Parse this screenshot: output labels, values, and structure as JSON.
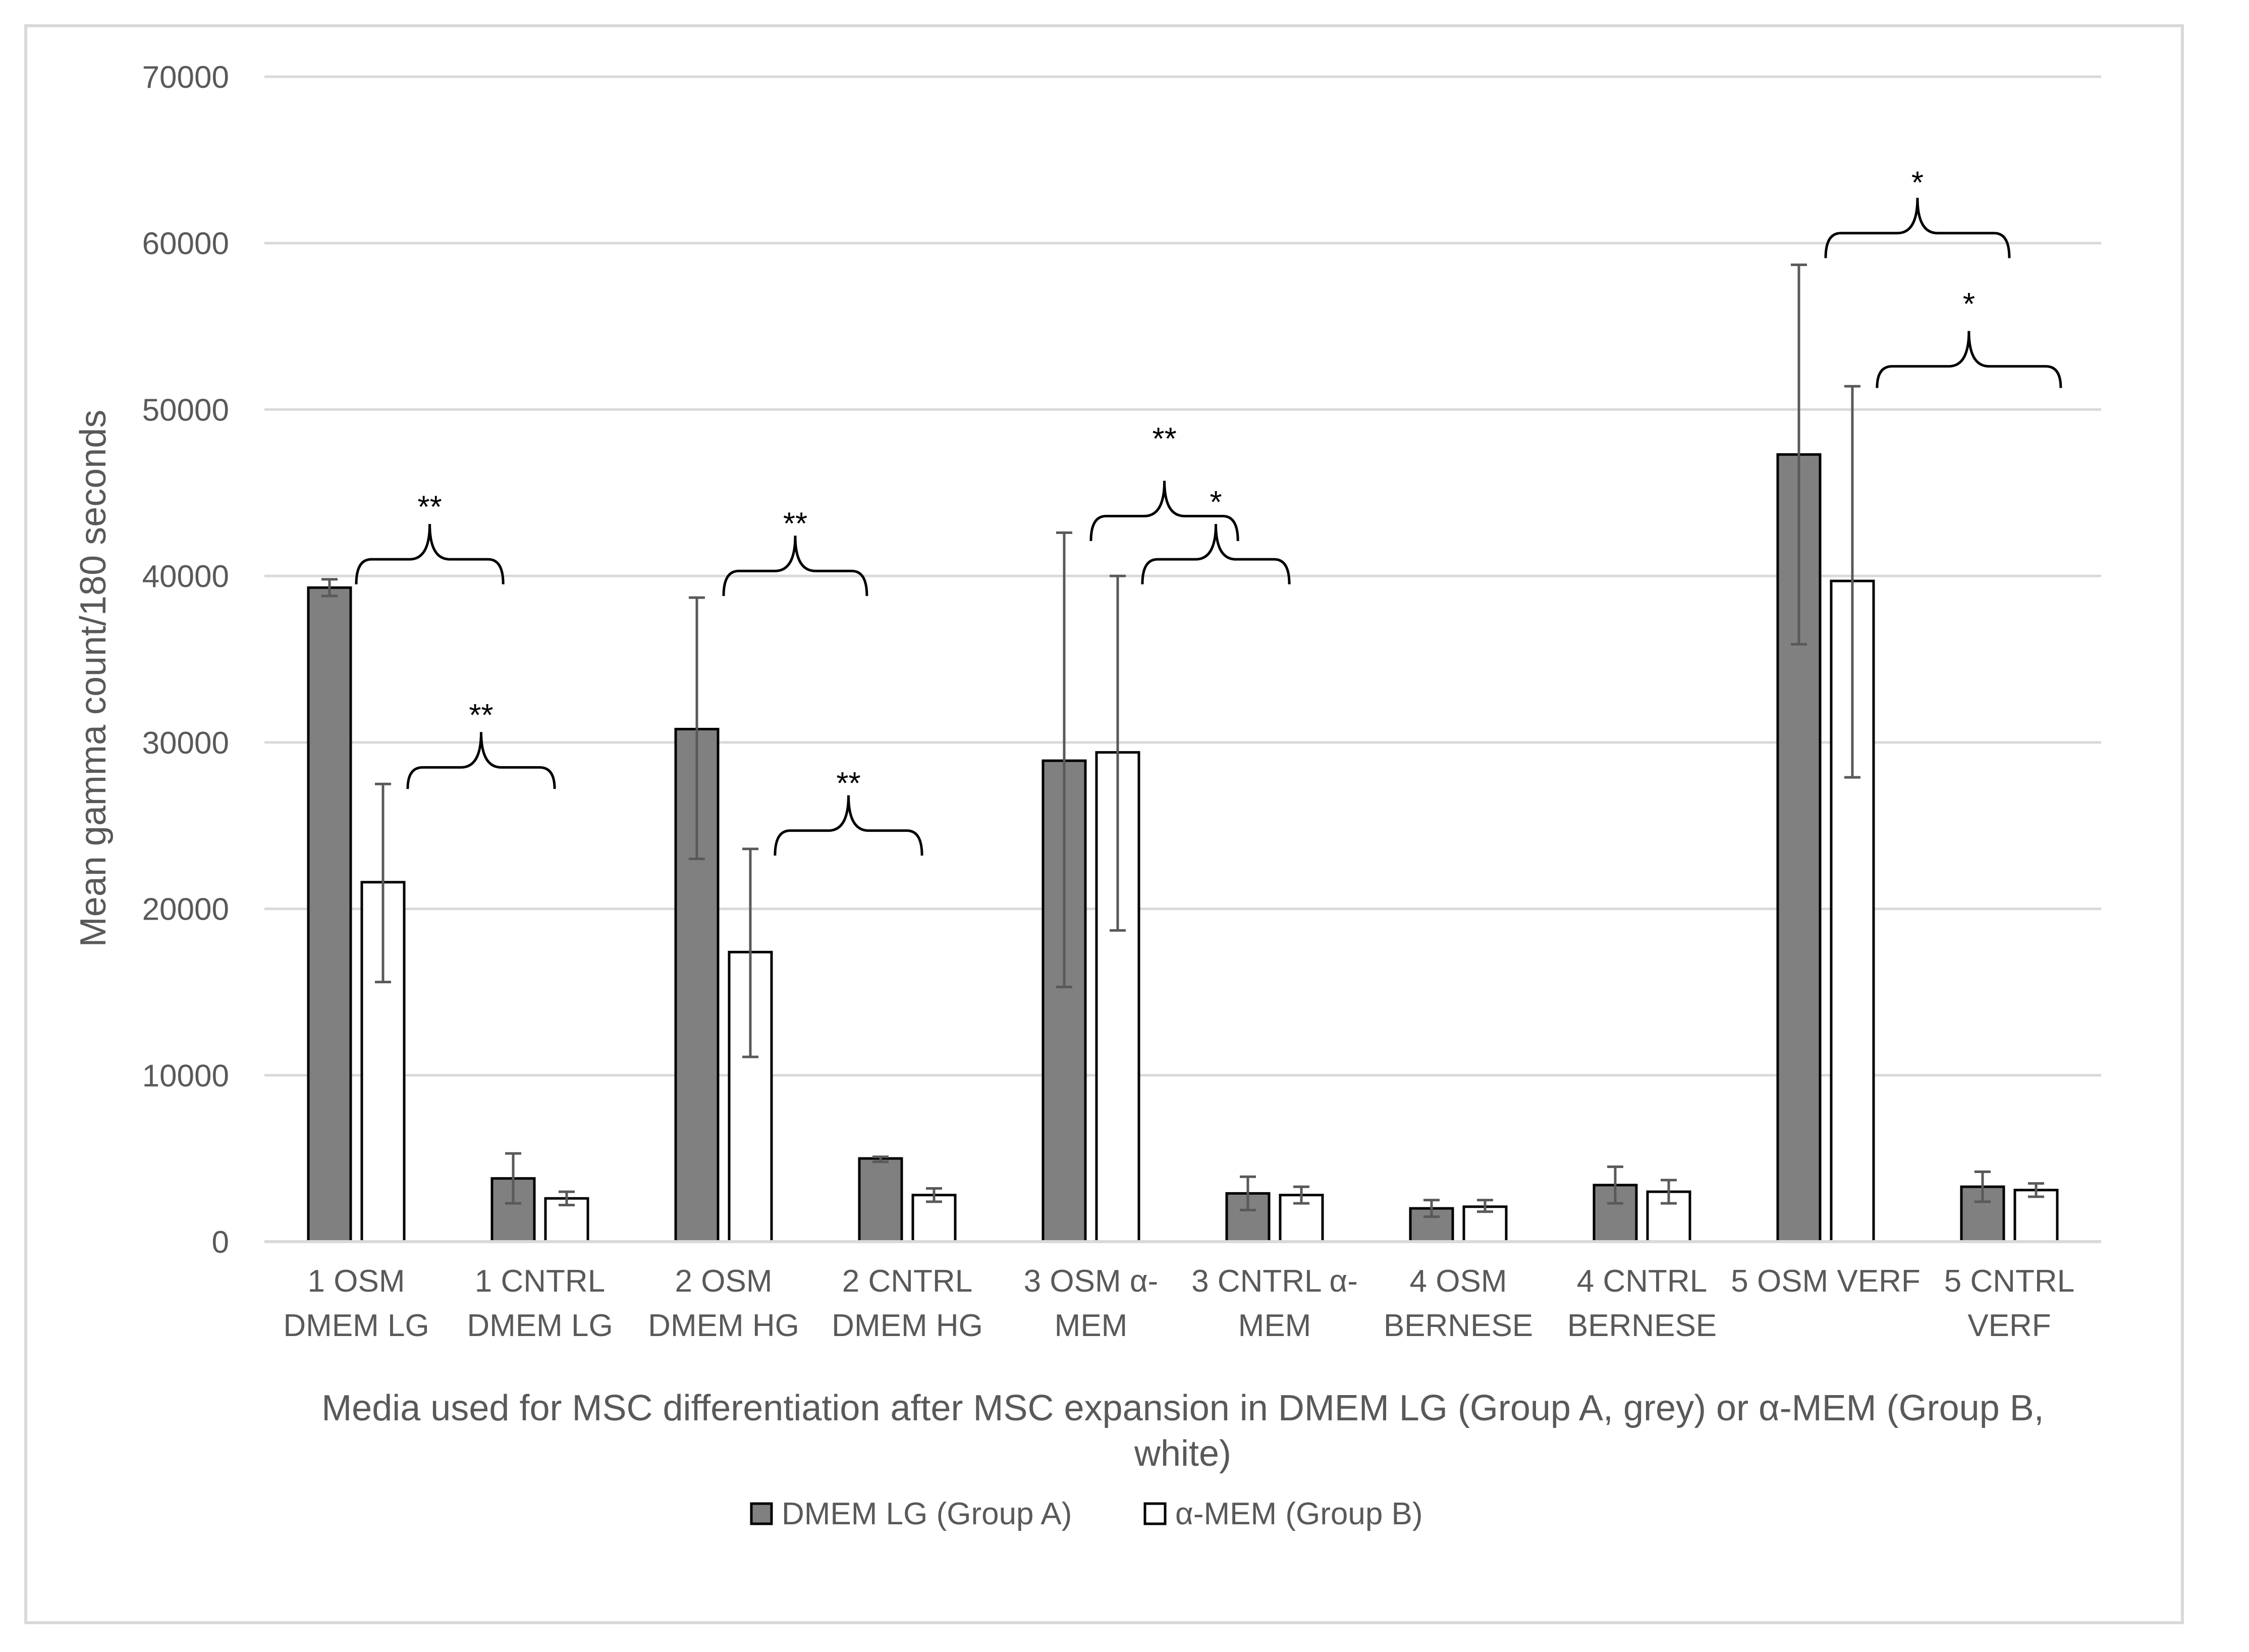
{
  "chart_data": {
    "type": "bar",
    "title": "",
    "ylabel": "Mean gamma count/180 seconds",
    "xlabel_lines": [
      "Media used for MSC differentiation after MSC expansion in DMEM LG (Group A, grey) or α-MEM (Group B,",
      "white)"
    ],
    "ylim": [
      0,
      70000
    ],
    "yticks": [
      0,
      10000,
      20000,
      30000,
      40000,
      50000,
      60000,
      70000
    ],
    "grid": true,
    "categories": [
      [
        "1 OSM",
        "DMEM LG"
      ],
      [
        "1 CNTRL",
        "DMEM LG"
      ],
      [
        "2 OSM",
        "DMEM HG"
      ],
      [
        "2 CNTRL",
        "DMEM HG"
      ],
      [
        "3 OSM α-",
        "MEM"
      ],
      [
        "3 CNTRL α-",
        "MEM"
      ],
      [
        "4 OSM",
        "BERNESE"
      ],
      [
        "4 CNTRL",
        "BERNESE"
      ],
      [
        "5 OSM VERF",
        ""
      ],
      [
        "5 CNTRL",
        "VERF"
      ]
    ],
    "series": [
      {
        "name": "DMEM LG (Group A)",
        "color": "#808080",
        "values": [
          39300,
          3800,
          30800,
          5000,
          28900,
          2900,
          2000,
          3400,
          47300,
          3300
        ],
        "err_low": [
          38800,
          2300,
          23000,
          4800,
          15300,
          1900,
          1500,
          2300,
          35900,
          2400
        ],
        "err_high": [
          39800,
          5300,
          38700,
          5100,
          42600,
          3900,
          2500,
          4500,
          58700,
          4200
        ]
      },
      {
        "name": "α-MEM (Group B)",
        "color": "#ffffff",
        "values": [
          21600,
          2600,
          17400,
          2800,
          29400,
          2800,
          2100,
          3000,
          39700,
          3100
        ],
        "err_low": [
          15600,
          2200,
          11100,
          2400,
          18700,
          2300,
          1800,
          2300,
          27900,
          2700
        ],
        "err_high": [
          27500,
          3000,
          23600,
          3200,
          40000,
          3300,
          2500,
          3700,
          51400,
          3500
        ]
      }
    ],
    "annotations": [
      {
        "text": "**",
        "x1": 0.5,
        "x2": 1.3,
        "y_bottom": 39500,
        "y_top": 41000,
        "label_y": 43500
      },
      {
        "text": "**",
        "x1": 0.78,
        "x2": 1.58,
        "y_bottom": 27200,
        "y_top": 28500,
        "label_y": 31000
      },
      {
        "text": "**",
        "x1": 2.5,
        "x2": 3.28,
        "y_bottom": 38800,
        "y_top": 40300,
        "label_y": 42500
      },
      {
        "text": "**",
        "x1": 2.78,
        "x2": 3.58,
        "y_bottom": 23200,
        "y_top": 24700,
        "label_y": 26900
      },
      {
        "text": "**",
        "x1": 4.5,
        "x2": 5.3,
        "y_bottom": 42100,
        "y_top": 43600,
        "label_y": 47600
      },
      {
        "text": "*",
        "x1": 4.78,
        "x2": 5.58,
        "y_bottom": 39500,
        "y_top": 41000,
        "label_y": 43800
      },
      {
        "text": "*",
        "x1": 8.5,
        "x2": 9.5,
        "y_bottom": 59100,
        "y_top": 60600,
        "label_y": 63000
      },
      {
        "text": "*",
        "x1": 8.78,
        "x2": 9.78,
        "y_bottom": 51300,
        "y_top": 52600,
        "label_y": 55700
      }
    ],
    "legend_position": "bottom"
  }
}
